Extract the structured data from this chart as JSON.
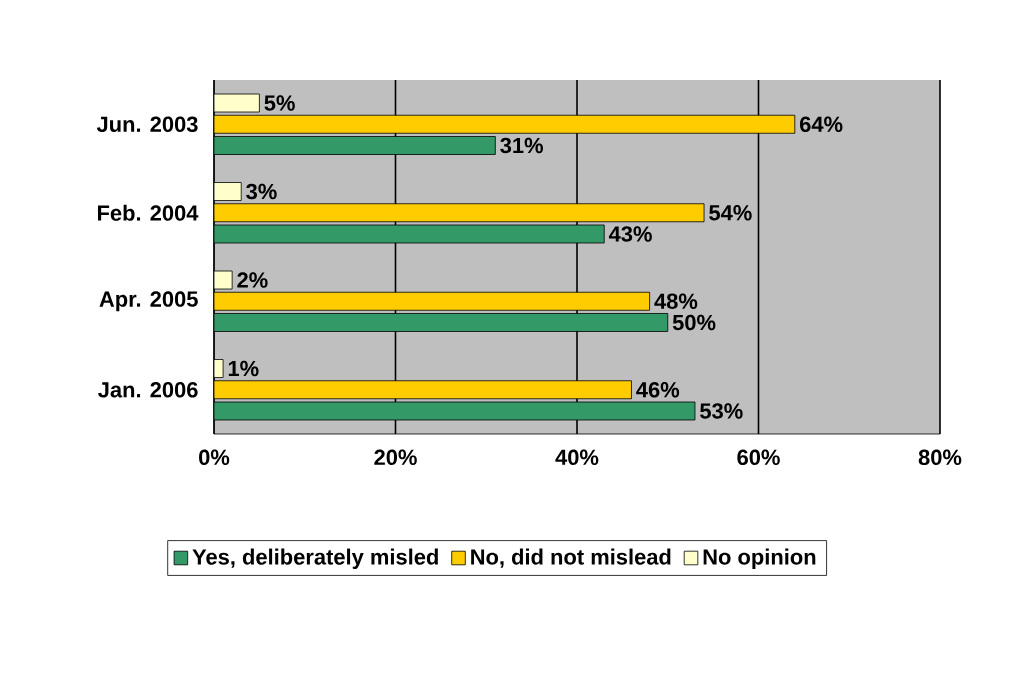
{
  "chart_data": {
    "type": "bar",
    "orientation": "horizontal",
    "categories": [
      "Jun. 2003",
      "Feb. 2004",
      "Apr. 2005",
      "Jan. 2006"
    ],
    "series": [
      {
        "name": "Yes, deliberately misled",
        "color": "#339966",
        "values": [
          31,
          43,
          50,
          53
        ],
        "value_labels": [
          "31%",
          "43%",
          "50%",
          "53%"
        ]
      },
      {
        "name": "No, did not mislead",
        "color": "#ffcc00",
        "values": [
          64,
          54,
          48,
          46
        ],
        "value_labels": [
          "64%",
          "54%",
          "48%",
          "46%"
        ]
      },
      {
        "name": "No opinion",
        "color": "#ffffcc",
        "values": [
          5,
          3,
          2,
          1
        ],
        "value_labels": [
          "5%",
          "3%",
          "2%",
          "1%"
        ]
      }
    ],
    "xlim": [
      0,
      80
    ],
    "xticks": [
      {
        "value": 0,
        "label": "0%"
      },
      {
        "value": 20,
        "label": "20%"
      },
      {
        "value": 40,
        "label": "40%"
      },
      {
        "value": 60,
        "label": "60%"
      },
      {
        "value": 80,
        "label": "80%"
      }
    ],
    "grid": "x",
    "legend": "bottom"
  }
}
